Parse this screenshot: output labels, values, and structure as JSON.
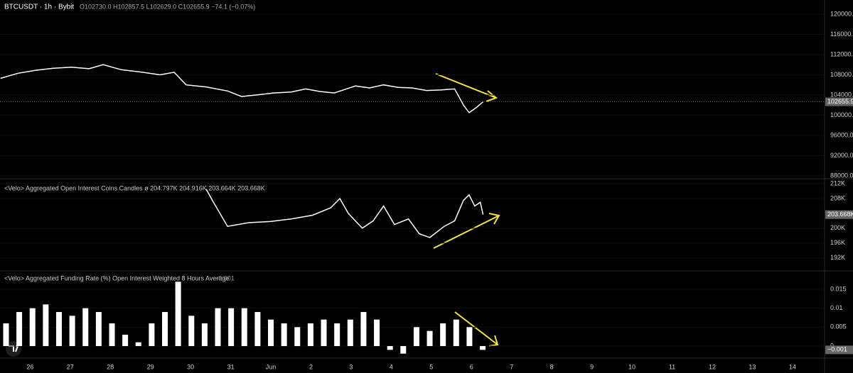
{
  "chart_data": [
    {
      "type": "line",
      "title": "BTCUSDT · 1h · Bybit",
      "subtitle": "O102730.0 H102857.5 L102629.0 C102655.9 −74.1 (−0.07%)",
      "last_label": "102655.9",
      "color": "#ffffff",
      "xlim": [
        -0.75,
        19.8
      ],
      "ylim": [
        87440,
        122800
      ],
      "yticks": [
        {
          "value": 120000,
          "label": "120000.0"
        },
        {
          "value": 116000,
          "label": "116000.0"
        },
        {
          "value": 112000,
          "label": "112000.0"
        },
        {
          "value": 108000,
          "label": "108000.0"
        },
        {
          "value": 104000,
          "label": "104000.0"
        },
        {
          "value": 100000,
          "label": "100000.0"
        },
        {
          "value": 96000,
          "label": "96000.0"
        },
        {
          "value": 92000,
          "label": "92000.0"
        },
        {
          "value": 88000,
          "label": "88000.0"
        }
      ],
      "x": [
        -0.74,
        -0.3,
        0.14,
        0.58,
        1.03,
        1.47,
        1.82,
        2.27,
        2.8,
        3.24,
        3.59,
        3.89,
        4.39,
        4.92,
        5.27,
        5.63,
        6.07,
        6.51,
        6.87,
        7.22,
        7.58,
        8.11,
        8.46,
        8.81,
        9.17,
        9.52,
        9.88,
        10.23,
        10.58,
        10.8,
        10.94,
        11.12,
        11.29
      ],
      "values": [
        107300,
        108300,
        108900,
        109300,
        109500,
        109200,
        110000,
        109000,
        108500,
        108000,
        108500,
        106000,
        105600,
        104800,
        103700,
        104000,
        104400,
        104600,
        105200,
        104700,
        104400,
        105800,
        105400,
        106000,
        105500,
        105400,
        104900,
        105000,
        105200,
        102000,
        100500,
        101500,
        102655.9
      ]
    },
    {
      "type": "line",
      "title": "<Velo> Aggregated Open Interest Coins Candles ø 204.797K 204.916K 203.664K 203.668K",
      "last_label": "203.668K",
      "color": "#ffffff",
      "xlim": [
        -0.75,
        19.8
      ],
      "ylim": [
        188.5,
        213.35
      ],
      "yticks": [
        {
          "value": 212,
          "label": "212K"
        },
        {
          "value": 208,
          "label": "208K"
        },
        {
          "value": 200,
          "label": "200K"
        },
        {
          "value": 196,
          "label": "196K"
        },
        {
          "value": 192,
          "label": "192K"
        }
      ],
      "x": [
        4.39,
        4.57,
        4.92,
        5.45,
        5.98,
        6.51,
        7.04,
        7.49,
        7.72,
        7.93,
        8.28,
        8.55,
        8.81,
        9.08,
        9.43,
        9.7,
        9.96,
        10.32,
        10.58,
        10.8,
        10.94,
        11.08,
        11.22,
        11.29
      ],
      "values": [
        210.5,
        207,
        200.5,
        201.5,
        201.8,
        202.5,
        203.5,
        205.5,
        208,
        204,
        200,
        202,
        206,
        201,
        202.5,
        198.5,
        197.5,
        200.5,
        202,
        207.5,
        209,
        206,
        207,
        203.668
      ]
    },
    {
      "type": "bar",
      "title": "<Velo> Aggregated Funding Rate (%) Open Interest Weighted 8 Hours Average",
      "title_value": "−0.001",
      "last_label": "−0.001",
      "color": "#ffffff",
      "xlim": [
        -0.75,
        19.8
      ],
      "ylim": [
        -0.00318,
        0.01986
      ],
      "yticks": [
        0.015,
        0.01,
        0.005,
        0
      ],
      "xticks": [
        {
          "value": 0,
          "label": "26"
        },
        {
          "value": 1,
          "label": "27"
        },
        {
          "value": 2,
          "label": "28"
        },
        {
          "value": 3,
          "label": "29"
        },
        {
          "value": 4,
          "label": "30"
        },
        {
          "value": 5,
          "label": "31"
        },
        {
          "value": 6,
          "label": "Jun"
        },
        {
          "value": 7,
          "label": "2"
        },
        {
          "value": 8,
          "label": "3"
        },
        {
          "value": 9,
          "label": "4"
        },
        {
          "value": 10,
          "label": "5"
        },
        {
          "value": 11,
          "label": "6"
        },
        {
          "value": 12,
          "label": "7"
        },
        {
          "value": 13,
          "label": "8"
        },
        {
          "value": 14,
          "label": "9"
        },
        {
          "value": 15,
          "label": "10"
        },
        {
          "value": 16,
          "label": "11"
        },
        {
          "value": 17,
          "label": "12"
        },
        {
          "value": 18,
          "label": "13"
        },
        {
          "value": 19,
          "label": "14"
        }
      ],
      "x": [
        -0.6,
        -0.27,
        0.06,
        0.39,
        0.72,
        1.05,
        1.38,
        1.71,
        2.04,
        2.37,
        2.7,
        3.03,
        3.36,
        3.69,
        4.02,
        4.35,
        4.68,
        5.01,
        5.34,
        5.67,
        6.0,
        6.33,
        6.66,
        6.99,
        7.32,
        7.65,
        7.98,
        8.31,
        8.64,
        8.97,
        9.3,
        9.63,
        9.96,
        10.29,
        10.62,
        10.95,
        11.28
      ],
      "values": [
        0.006,
        0.009,
        0.01,
        0.011,
        0.009,
        0.008,
        0.01,
        0.009,
        0.006,
        0.003,
        0.001,
        0.006,
        0.009,
        0.017,
        0.008,
        0.006,
        0.01,
        0.01,
        0.01,
        0.009,
        0.007,
        0.006,
        0.005,
        0.006,
        0.007,
        0.006,
        0.007,
        0.009,
        0.007,
        -0.001,
        -0.002,
        0.005,
        0.004,
        0.006,
        0.007,
        0.005,
        -0.001
      ]
    }
  ]
}
